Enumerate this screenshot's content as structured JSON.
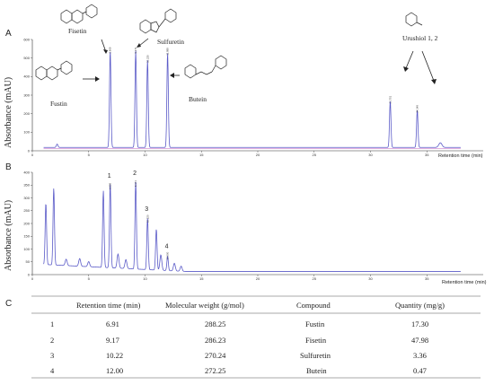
{
  "chart_data": [
    {
      "type": "line",
      "panel": "A",
      "ylabel": "Absorbance (mAU)",
      "xlabel": "Retention time (min)",
      "xlim": [
        0,
        40
      ],
      "ylim": [
        0,
        600
      ],
      "xticks": [
        "0",
        "5",
        "10",
        "15",
        "20",
        "25",
        "30",
        "35"
      ],
      "yticks": [
        "0",
        "100",
        "200",
        "300",
        "400",
        "500",
        "600"
      ],
      "peaks": [
        {
          "rt": 6.91,
          "height": 520,
          "label": "6.909"
        },
        {
          "rt": 9.17,
          "height": 520,
          "label": "9.171"
        },
        {
          "rt": 10.22,
          "height": 470,
          "label": "10.220"
        },
        {
          "rt": 12.0,
          "height": 510,
          "label": "11.999"
        },
        {
          "rt": 31.75,
          "height": 250,
          "label": "31.751"
        },
        {
          "rt": 34.15,
          "height": 200,
          "label": "34.149"
        }
      ],
      "compounds": [
        {
          "name": "Fisetin"
        },
        {
          "name": "Sulfuretin"
        },
        {
          "name": "Fustin"
        },
        {
          "name": "Butein"
        },
        {
          "name": "Urushiol 1, 2"
        }
      ]
    },
    {
      "type": "line",
      "panel": "B",
      "ylabel": "Absorbance (mAU)",
      "xlabel": "Retention time (min)",
      "xlim": [
        0,
        40
      ],
      "ylim": [
        0,
        400
      ],
      "xticks": [
        "0",
        "5",
        "10",
        "15",
        "20",
        "25",
        "30",
        "35"
      ],
      "yticks": [
        "0",
        "50",
        "100",
        "150",
        "200",
        "250",
        "300",
        "350",
        "400"
      ],
      "peaks": [
        {
          "rt": 1.2,
          "height": 240,
          "label": ""
        },
        {
          "rt": 1.9,
          "height": 300,
          "label": ""
        },
        {
          "rt": 6.3,
          "height": 300,
          "label": ""
        },
        {
          "rt": 6.91,
          "height": 330,
          "label": "6.909",
          "num": "1"
        },
        {
          "rt": 9.17,
          "height": 340,
          "label": "9.171",
          "num": "2"
        },
        {
          "rt": 10.22,
          "height": 200,
          "label": "10.220",
          "num": "3"
        },
        {
          "rt": 11.0,
          "height": 160,
          "label": ""
        },
        {
          "rt": 12.0,
          "height": 55,
          "label": "12.000",
          "num": "4"
        }
      ]
    }
  ],
  "panels": {
    "a": "A",
    "b": "B",
    "c": "C"
  },
  "table": {
    "headers": [
      "Retention time (min)",
      "Molecular weight (g/mol)",
      "Compound",
      "Quantity (mg/g)"
    ],
    "rows": [
      [
        "1",
        "6.91",
        "288.25",
        "Fustin",
        "17.30"
      ],
      [
        "2",
        "9.17",
        "286.23",
        "Fisetin",
        "47.98"
      ],
      [
        "3",
        "10.22",
        "270.24",
        "Sulfuretin",
        "3.36"
      ],
      [
        "4",
        "12.00",
        "272.25",
        "Butein",
        "0.47"
      ]
    ]
  },
  "colors": {
    "trace": "#5b5bc8",
    "trace2": "#c060c0",
    "axis": "#333333"
  }
}
